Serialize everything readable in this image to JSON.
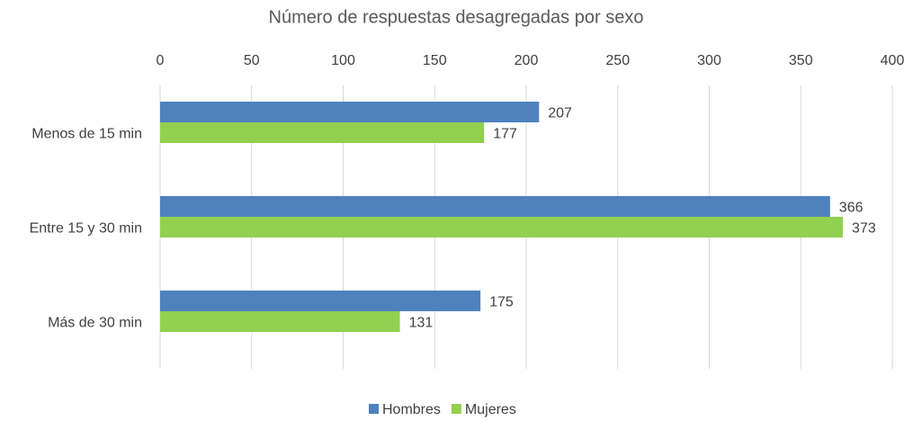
{
  "chart_data": {
    "type": "hbar",
    "title": "Número de respuestas desagregadas por sexo",
    "categories": [
      "Menos de 15 min",
      "Entre 15 y 30 min",
      "Más de 30 min"
    ],
    "series": [
      {
        "name": "Hombres",
        "color": "#4f81bd",
        "values": [
          207,
          366,
          175
        ]
      },
      {
        "name": "Mujeres",
        "color": "#92d050",
        "values": [
          177,
          373,
          131
        ]
      }
    ],
    "xlim": [
      0,
      400
    ],
    "xticks": [
      0,
      50,
      100,
      150,
      200,
      250,
      300,
      350,
      400
    ],
    "grid": true,
    "legend": "bottom"
  }
}
